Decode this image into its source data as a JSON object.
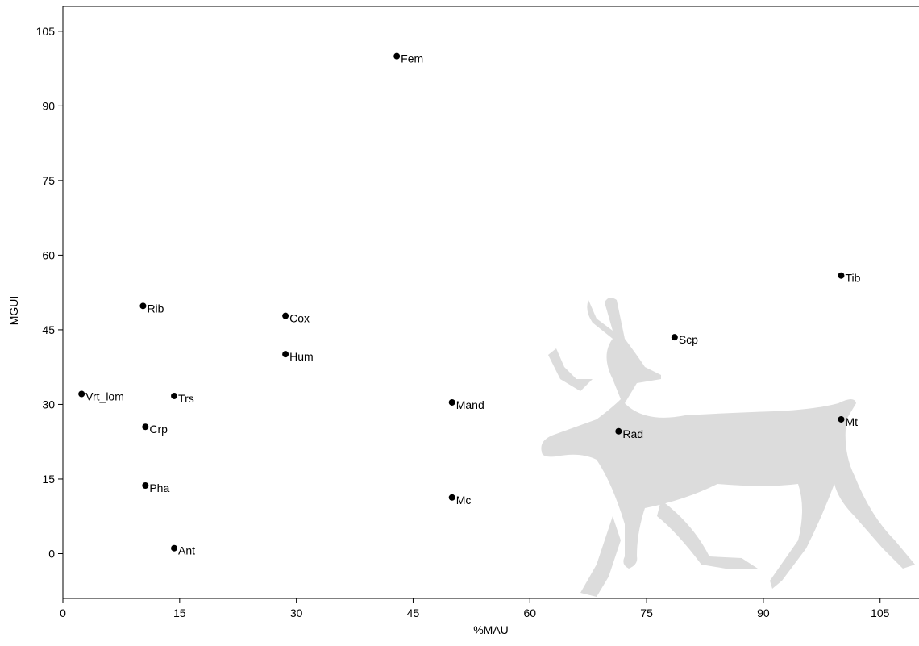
{
  "chart_data": {
    "type": "scatter",
    "x_label": "%MAU",
    "y_label": "MGUI",
    "labels": [
      "Fem",
      "Tib",
      "Rib",
      "Cox",
      "Hum",
      "Scp",
      "Vrt_lom",
      "Trs",
      "Mand",
      "Crp",
      "Mt",
      "Rad",
      "Pha",
      "Mc",
      "Ant"
    ],
    "x": [
      42.9,
      100,
      10.3,
      28.6,
      28.6,
      78.6,
      2.4,
      14.3,
      50,
      10.6,
      100,
      71.4,
      10.6,
      50,
      14.3
    ],
    "values": [
      100,
      55.9,
      49.8,
      47.8,
      40.1,
      43.5,
      32.1,
      31.7,
      30.4,
      25.5,
      27,
      24.6,
      13.7,
      11.3,
      1.1
    ],
    "color": "#000000",
    "xlim": [
      0,
      110
    ],
    "ylim": [
      -9,
      110
    ],
    "xticks": [
      0,
      15,
      30,
      45,
      60,
      75,
      90,
      105
    ],
    "yticks": [
      0,
      15,
      30,
      45,
      60,
      75,
      90,
      105
    ]
  }
}
